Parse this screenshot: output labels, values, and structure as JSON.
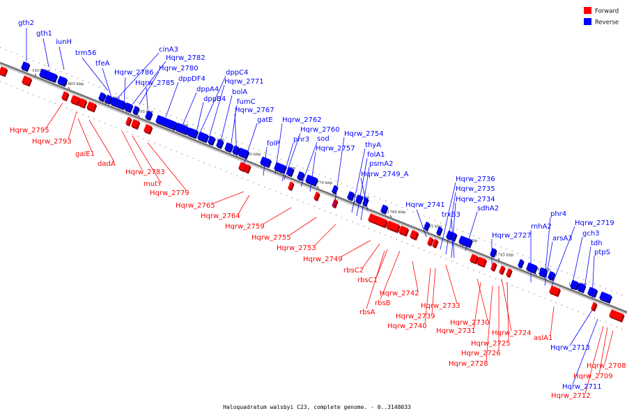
{
  "caption": "Haloquadratum walsbyi C23, complete genome. - 0..3148033",
  "legend": [
    {
      "label": "Forward",
      "color": "#ff0000"
    },
    {
      "label": "Reverse",
      "color": "#0000ff"
    }
  ],
  "colors": {
    "forward": "#ff0000",
    "reverse": "#0000ff",
    "backbone": "#808080"
  },
  "ticks": [
    "1810 kbp",
    "1805 kbp",
    "1800 kbp",
    "1795 kbp",
    "1790 kbp",
    "1785 kbp",
    "1780 kbp",
    "1775 kbp",
    "1770 kbp",
    "1765 kbp",
    "1760 kbp",
    "1755 kbp",
    "1750 kbp",
    "1745 kbp",
    "1740 kbp",
    "1735 kbp"
  ],
  "reverse_genes": [
    "gth2",
    "gth1",
    "iunH",
    "trm56",
    "tfeA",
    "cinA3",
    "Hqrw_2786",
    "Hqrw_2782",
    "Hqrw_2780",
    "Hqrw_2785",
    "dppDF4",
    "dppC4",
    "dppA4",
    "Hqrw_2771",
    "dppB4",
    "bolA",
    "fumC",
    "Hqrw_2767",
    "gatE",
    "Hqrw_2762",
    "Hqrw_2760",
    "folP",
    "phr3",
    "sod",
    "Hqrw_2754",
    "Hqrw_2757",
    "thyA",
    "folA1",
    "psmA2",
    "Hqrw_2749_A",
    "Hqrw_2736",
    "Hqrw_2735",
    "Hqrw_2741",
    "Hqrw_2734",
    "trxB3",
    "sdhA2",
    "phr4",
    "rnhA2",
    "Hqrw_2727",
    "Hqrw_2719",
    "arsA3",
    "gch3",
    "tdh",
    "ptpS",
    "Hqrw_2713",
    "Hqrw_2711"
  ],
  "forward_genes": [
    "Hqrw_2795",
    "Hqrw_2793",
    "galE1",
    "dadA",
    "Hqrw_2783",
    "mutY",
    "Hqrw_2779",
    "Hqrw_2765",
    "Hqrw_2764",
    "Hqrw_2759",
    "Hqrw_2755",
    "Hqrw_2753",
    "Hqrw_2749",
    "rbsC2",
    "rbsC1",
    "rbsB",
    "rbsA",
    "Hqrw_2742",
    "Hqrw_2739",
    "Hqrw_2740",
    "Hqrw_2733",
    "Hqrw_2730",
    "Hqrw_2731",
    "Hqrw_2724",
    "Hqrw_2725",
    "Hqrw_2726",
    "Hqrw_2728",
    "aslA1",
    "Hqrw_2708",
    "Hqrw_2709",
    "Hqrw_2712"
  ]
}
